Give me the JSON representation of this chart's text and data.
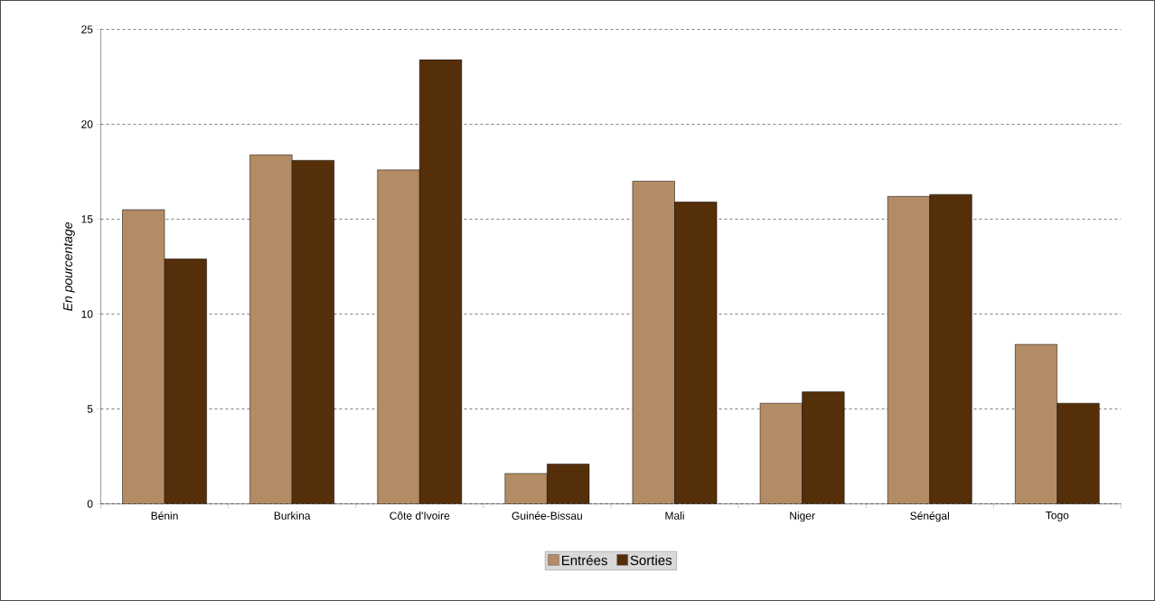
{
  "chart_data": {
    "type": "bar",
    "ylabel": "En pourcentage",
    "categories": [
      "Bénin",
      "Burkina",
      "Côte d'Ivoire",
      "Guinée-Bissau",
      "Mali",
      "Niger",
      "Sénégal",
      "Togo"
    ],
    "series": [
      {
        "name": "Entrées",
        "color": "#b38b65",
        "values": [
          15.5,
          18.4,
          17.6,
          1.6,
          17.0,
          5.3,
          16.2,
          8.4
        ]
      },
      {
        "name": "Sorties",
        "color": "#552e0a",
        "values": [
          12.9,
          18.1,
          23.4,
          2.1,
          15.9,
          5.9,
          16.3,
          5.3
        ]
      }
    ],
    "ylim": [
      0,
      25
    ],
    "yticks": [
      0,
      5,
      10,
      15,
      20,
      25
    ],
    "grid": "y",
    "legend": "bottom"
  }
}
